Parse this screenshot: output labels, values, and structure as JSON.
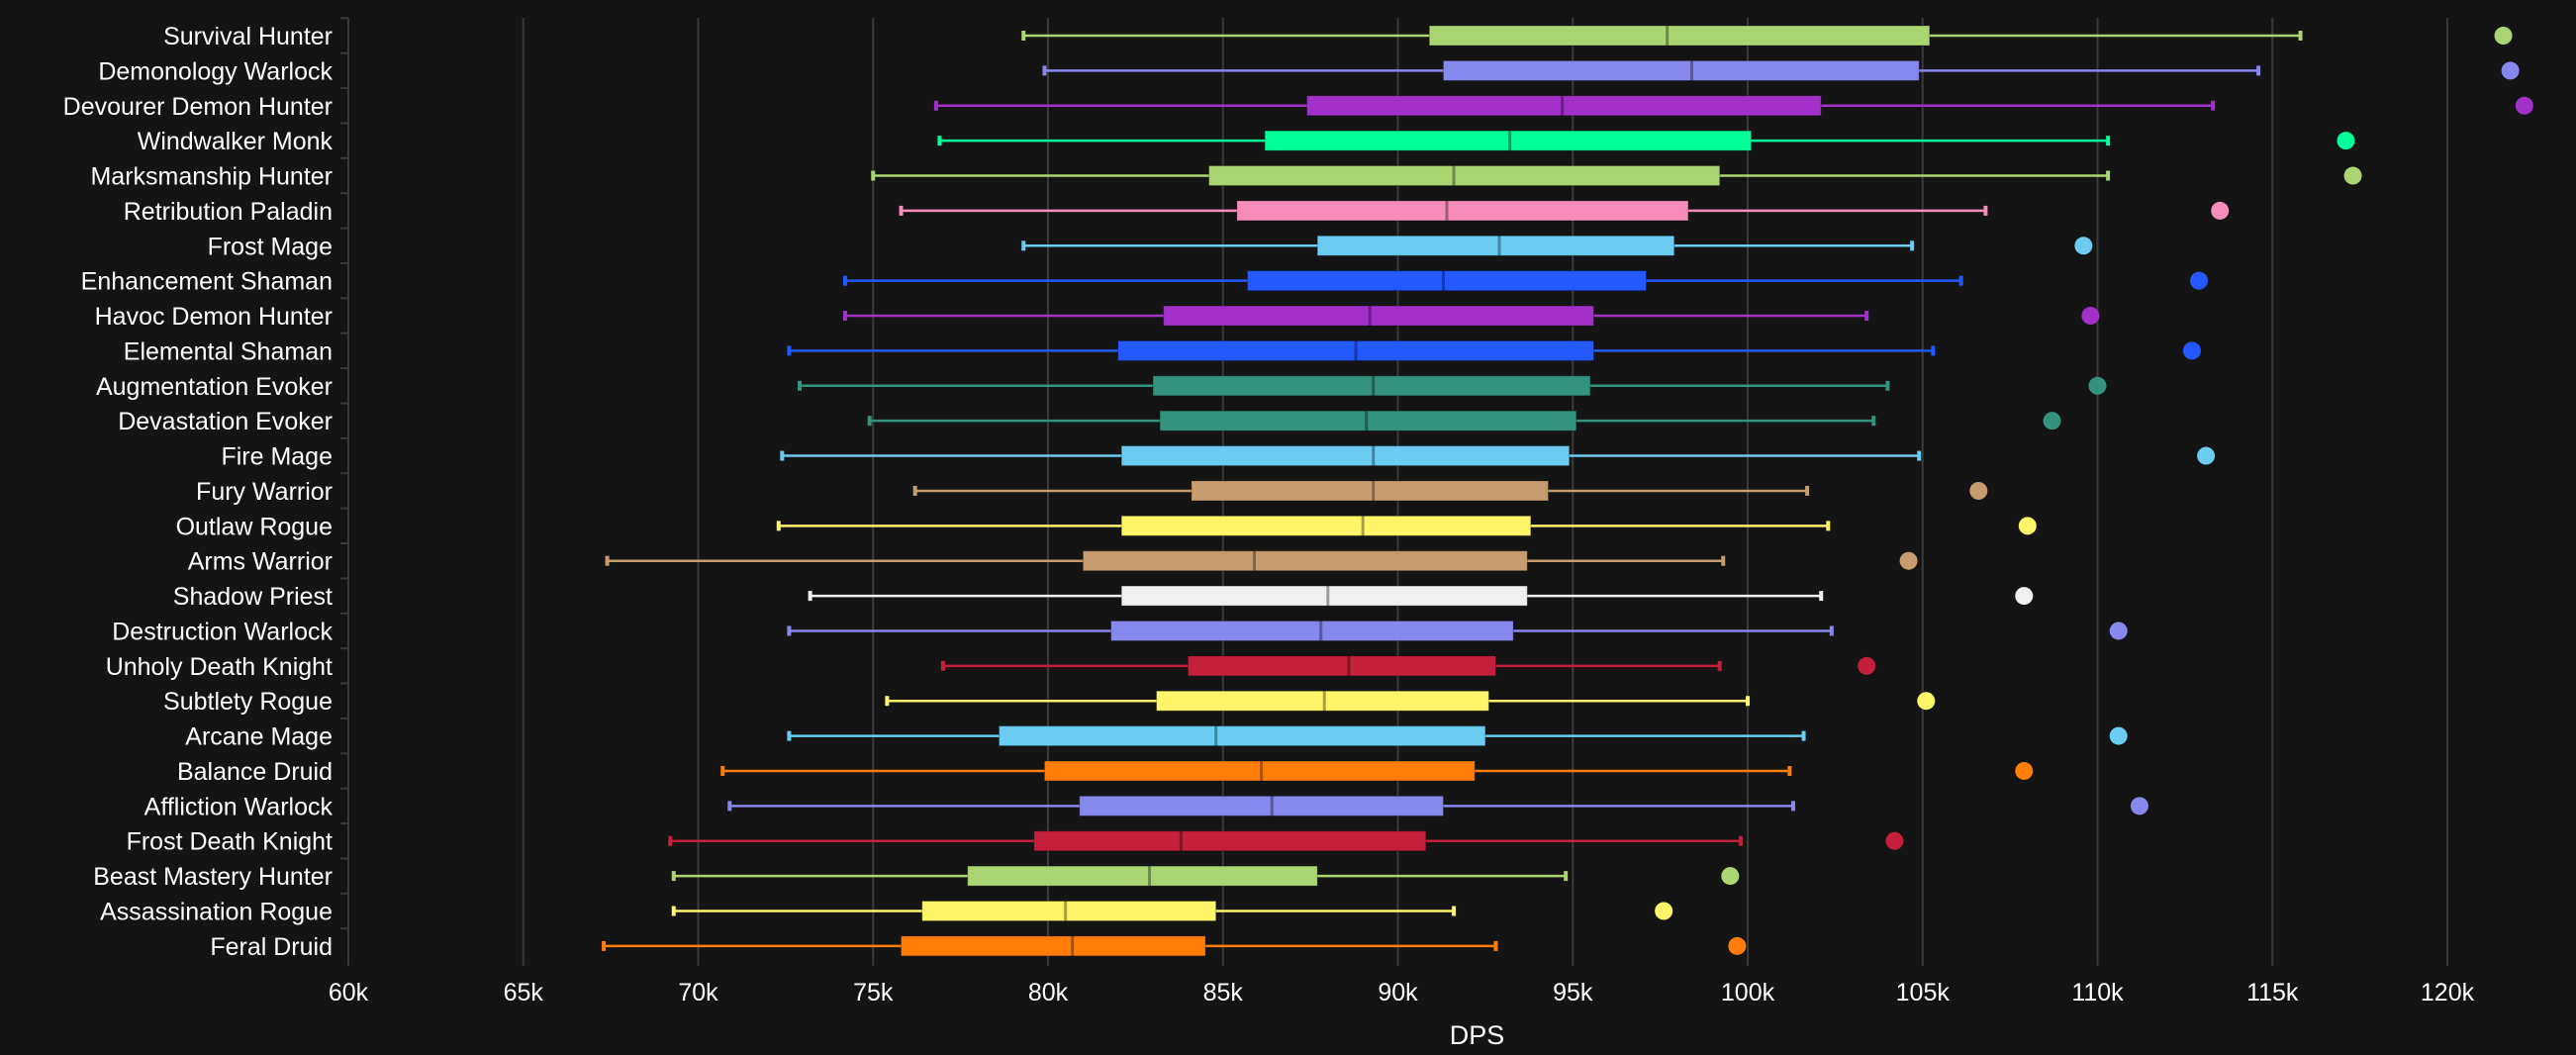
{
  "chart_data": {
    "type": "box",
    "orientation": "horizontal",
    "title": "",
    "xlabel": "DPS",
    "ylabel": "",
    "xlim": [
      60000,
      122500
    ],
    "x_ticks": [
      60000,
      65000,
      70000,
      75000,
      80000,
      85000,
      90000,
      95000,
      100000,
      105000,
      110000,
      115000,
      120000
    ],
    "x_tick_labels": [
      "60k",
      "65k",
      "70k",
      "75k",
      "80k",
      "85k",
      "90k",
      "95k",
      "100k",
      "105k",
      "110k",
      "115k",
      "120k"
    ],
    "grid": "vertical",
    "series": [
      {
        "name": "Survival Hunter",
        "color": "#abd473",
        "min": 79300,
        "q1": 90900,
        "median": 97700,
        "q3": 105200,
        "max": 115800,
        "outlier": 121600
      },
      {
        "name": "Demonology Warlock",
        "color": "#8788ee",
        "min": 79900,
        "q1": 91300,
        "median": 98400,
        "q3": 104900,
        "max": 114600,
        "outlier": 121800
      },
      {
        "name": "Devourer Demon Hunter",
        "color": "#a330c9",
        "min": 76800,
        "q1": 87400,
        "median": 94700,
        "q3": 102100,
        "max": 113300,
        "outlier": 122200
      },
      {
        "name": "Windwalker Monk",
        "color": "#00ff98",
        "min": 76900,
        "q1": 86200,
        "median": 93200,
        "q3": 100100,
        "max": 110300,
        "outlier": 117100
      },
      {
        "name": "Marksmanship Hunter",
        "color": "#abd473",
        "min": 75000,
        "q1": 84600,
        "median": 91600,
        "q3": 99200,
        "max": 110300,
        "outlier": 117300
      },
      {
        "name": "Retribution Paladin",
        "color": "#f58cba",
        "min": 75800,
        "q1": 85400,
        "median": 91400,
        "q3": 98300,
        "max": 106800,
        "outlier": 113500
      },
      {
        "name": "Frost Mage",
        "color": "#69ccf0",
        "min": 79300,
        "q1": 87700,
        "median": 92900,
        "q3": 97900,
        "max": 104700,
        "outlier": 109600
      },
      {
        "name": "Enhancement Shaman",
        "color": "#2459ff",
        "min": 74200,
        "q1": 85700,
        "median": 91300,
        "q3": 97100,
        "max": 106100,
        "outlier": 112900
      },
      {
        "name": "Havoc Demon Hunter",
        "color": "#a330c9",
        "min": 74200,
        "q1": 83300,
        "median": 89200,
        "q3": 95600,
        "max": 103400,
        "outlier": 109800
      },
      {
        "name": "Elemental Shaman",
        "color": "#2459ff",
        "min": 72600,
        "q1": 82000,
        "median": 88800,
        "q3": 95600,
        "max": 105300,
        "outlier": 112700
      },
      {
        "name": "Augmentation Evoker",
        "color": "#33937f",
        "min": 72900,
        "q1": 83000,
        "median": 89300,
        "q3": 95500,
        "max": 104000,
        "outlier": 110000
      },
      {
        "name": "Devastation Evoker",
        "color": "#33937f",
        "min": 74900,
        "q1": 83200,
        "median": 89100,
        "q3": 95100,
        "max": 103600,
        "outlier": 108700
      },
      {
        "name": "Fire Mage",
        "color": "#69ccf0",
        "min": 72400,
        "q1": 82100,
        "median": 89300,
        "q3": 94900,
        "max": 104900,
        "outlier": 113100
      },
      {
        "name": "Fury Warrior",
        "color": "#c79c6e",
        "min": 76200,
        "q1": 84100,
        "median": 89300,
        "q3": 94300,
        "max": 101700,
        "outlier": 106600
      },
      {
        "name": "Outlaw Rogue",
        "color": "#fff569",
        "min": 72300,
        "q1": 82100,
        "median": 89000,
        "q3": 93800,
        "max": 102300,
        "outlier": 108000
      },
      {
        "name": "Arms Warrior",
        "color": "#c79c6e",
        "min": 67400,
        "q1": 81000,
        "median": 85900,
        "q3": 93700,
        "max": 99300,
        "outlier": 104600
      },
      {
        "name": "Shadow Priest",
        "color": "#f0f0f0",
        "min": 73200,
        "q1": 82100,
        "median": 88000,
        "q3": 93700,
        "max": 102100,
        "outlier": 107900
      },
      {
        "name": "Destruction Warlock",
        "color": "#8788ee",
        "min": 72600,
        "q1": 81800,
        "median": 87800,
        "q3": 93300,
        "max": 102400,
        "outlier": 110600
      },
      {
        "name": "Unholy Death Knight",
        "color": "#c41f3b",
        "min": 77000,
        "q1": 84000,
        "median": 88600,
        "q3": 92800,
        "max": 99200,
        "outlier": 103400
      },
      {
        "name": "Subtlety Rogue",
        "color": "#fff569",
        "min": 75400,
        "q1": 83100,
        "median": 87900,
        "q3": 92600,
        "max": 100000,
        "outlier": 105100
      },
      {
        "name": "Arcane Mage",
        "color": "#69ccf0",
        "min": 72600,
        "q1": 78600,
        "median": 84800,
        "q3": 92500,
        "max": 101600,
        "outlier": 110600
      },
      {
        "name": "Balance Druid",
        "color": "#ff7d0a",
        "min": 70700,
        "q1": 79900,
        "median": 86100,
        "q3": 92200,
        "max": 101200,
        "outlier": 107900
      },
      {
        "name": "Affliction Warlock",
        "color": "#8788ee",
        "min": 70900,
        "q1": 80900,
        "median": 86400,
        "q3": 91300,
        "max": 101300,
        "outlier": 111200
      },
      {
        "name": "Frost Death Knight",
        "color": "#c41f3b",
        "min": 69200,
        "q1": 79600,
        "median": 83800,
        "q3": 90800,
        "max": 99800,
        "outlier": 104200
      },
      {
        "name": "Beast Mastery Hunter",
        "color": "#abd473",
        "min": 69300,
        "q1": 77700,
        "median": 82900,
        "q3": 87700,
        "max": 94800,
        "outlier": 99500
      },
      {
        "name": "Assassination Rogue",
        "color": "#fff569",
        "min": 69300,
        "q1": 76400,
        "median": 80500,
        "q3": 84800,
        "max": 91600,
        "outlier": 97600
      },
      {
        "name": "Feral Druid",
        "color": "#ff7d0a",
        "min": 67300,
        "q1": 75800,
        "median": 80700,
        "q3": 84500,
        "max": 92800,
        "outlier": 99700
      }
    ]
  }
}
